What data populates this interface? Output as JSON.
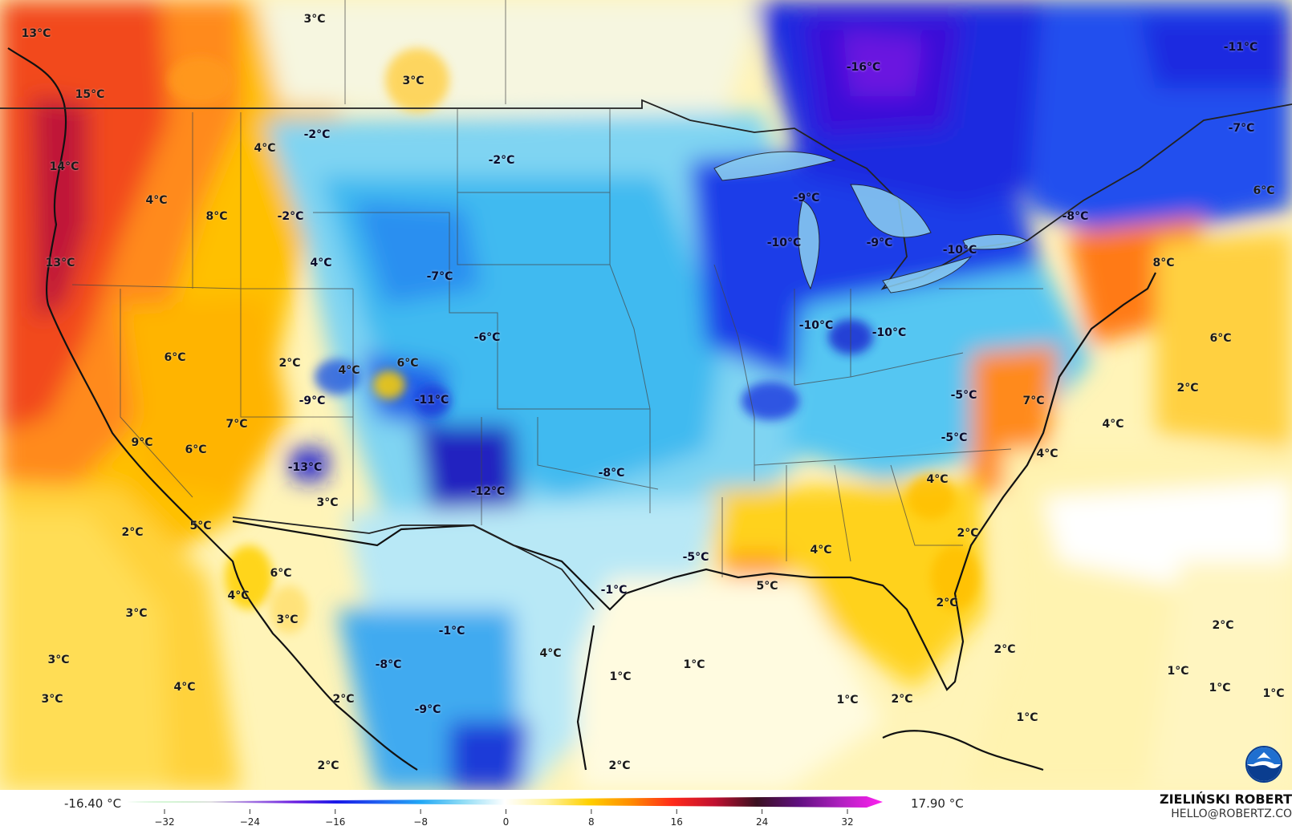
{
  "map": {
    "labels": [
      {
        "text": "13°C"
      },
      {
        "text": "3°C"
      },
      {
        "text": "3°C"
      },
      {
        "text": "15°C"
      },
      {
        "text": "-16°C"
      },
      {
        "text": "-11°C"
      },
      {
        "text": "-7°C"
      },
      {
        "text": "-2°C"
      },
      {
        "text": "4°C"
      },
      {
        "text": "14°C"
      },
      {
        "text": "-2°C"
      },
      {
        "text": "4°C"
      },
      {
        "text": "8°C"
      },
      {
        "text": "-2°C"
      },
      {
        "text": "-9°C"
      },
      {
        "text": "6°C"
      },
      {
        "text": "-8°C"
      },
      {
        "text": "13°C"
      },
      {
        "text": "4°C"
      },
      {
        "text": "-7°C"
      },
      {
        "text": "-10°C"
      },
      {
        "text": "-9°C"
      },
      {
        "text": "-10°C"
      },
      {
        "text": "8°C"
      },
      {
        "text": "-6°C"
      },
      {
        "text": "-10°C"
      },
      {
        "text": "-10°C"
      },
      {
        "text": "6°C"
      },
      {
        "text": "6°C"
      },
      {
        "text": "2°C"
      },
      {
        "text": "4°C"
      },
      {
        "text": "6°C"
      },
      {
        "text": "2°C"
      },
      {
        "text": "-9°C"
      },
      {
        "text": "-11°C"
      },
      {
        "text": "-5°C"
      },
      {
        "text": "7°C"
      },
      {
        "text": "4°C"
      },
      {
        "text": "7°C"
      },
      {
        "text": "9°C"
      },
      {
        "text": "6°C"
      },
      {
        "text": "-5°C"
      },
      {
        "text": "4°C"
      },
      {
        "text": "-13°C"
      },
      {
        "text": "-12°C"
      },
      {
        "text": "-8°C"
      },
      {
        "text": "4°C"
      },
      {
        "text": "3°C"
      },
      {
        "text": "5°C"
      },
      {
        "text": "2°C"
      },
      {
        "text": "2°C"
      },
      {
        "text": "6°C"
      },
      {
        "text": "-5°C"
      },
      {
        "text": "4°C"
      },
      {
        "text": "4°C"
      },
      {
        "text": "5°C"
      },
      {
        "text": "-1°C"
      },
      {
        "text": "3°C"
      },
      {
        "text": "3°C"
      },
      {
        "text": "2°C"
      },
      {
        "text": "-1°C"
      },
      {
        "text": "2°C"
      },
      {
        "text": "3°C"
      },
      {
        "text": "-8°C"
      },
      {
        "text": "4°C"
      },
      {
        "text": "1°C"
      },
      {
        "text": "1°C"
      },
      {
        "text": "2°C"
      },
      {
        "text": "1°C"
      },
      {
        "text": "1°C"
      },
      {
        "text": "4°C"
      },
      {
        "text": "3°C"
      },
      {
        "text": "2°C"
      },
      {
        "text": "-9°C"
      },
      {
        "text": "1°C"
      },
      {
        "text": "2°C"
      },
      {
        "text": "1°C"
      },
      {
        "text": "1°C"
      },
      {
        "text": "2°C"
      },
      {
        "text": "2°C"
      }
    ]
  },
  "legend": {
    "min_value": "-16.40 °C",
    "max_value": "17.90 °C",
    "ticks": [
      "−32",
      "−24",
      "−16",
      "−8",
      "0",
      "8",
      "16",
      "24",
      "32"
    ],
    "gradient_colors": [
      "#2ecc40",
      "#9be89b",
      "#dcdcdc",
      "#a070e0",
      "#6a1de0",
      "#1a1ae8",
      "#2060f0",
      "#22a8f5",
      "#8fdcf5",
      "#ffffff",
      "#fff3a0",
      "#ffd000",
      "#ff8c00",
      "#ff2a1a",
      "#c01030",
      "#3a1020",
      "#601080",
      "#b020c0",
      "#ff20f0"
    ]
  },
  "credit": {
    "name": "ZIELIŃSKI ROBERT",
    "email": "HELLO@ROBERTZ.CO"
  },
  "logo": {
    "icon": "noaa-logo-icon"
  }
}
